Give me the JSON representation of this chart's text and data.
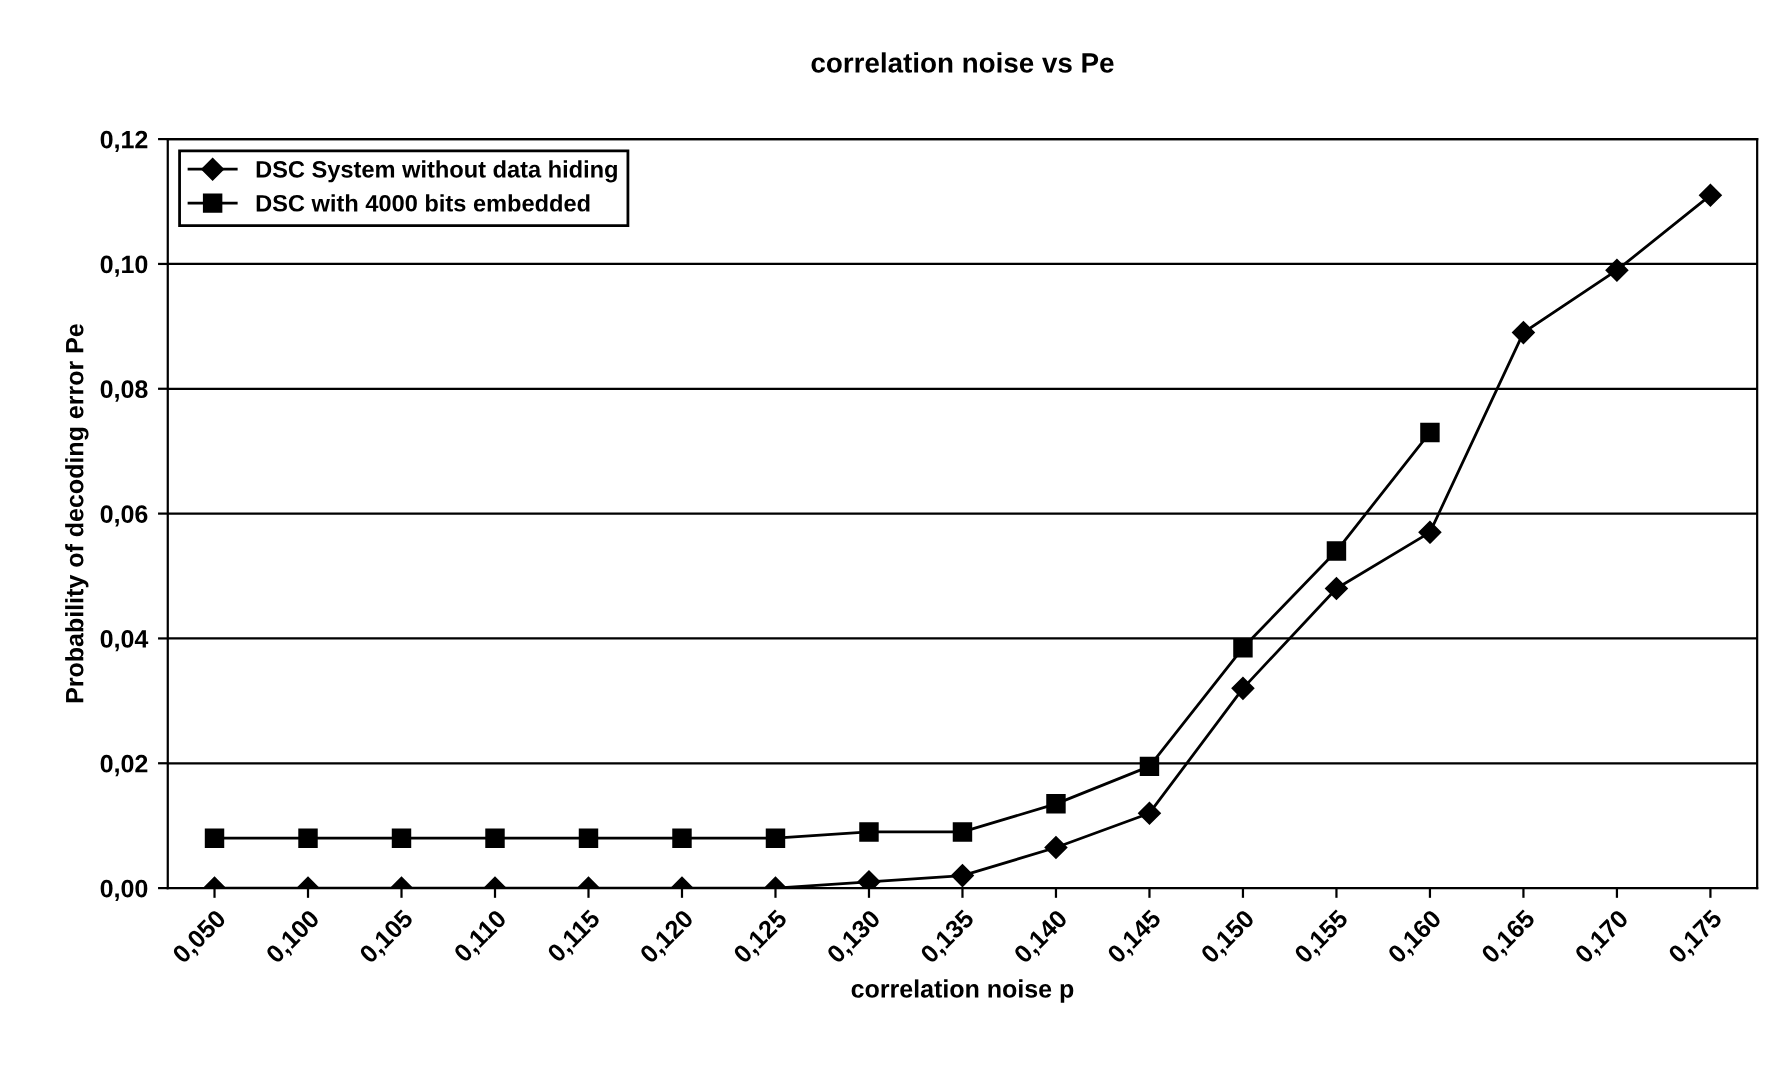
{
  "chart_data": {
    "type": "line",
    "title": "correlation noise vs Pe",
    "xlabel": "correlation noise p",
    "ylabel": "Probability of decoding error Pe",
    "categories": [
      "0,050",
      "0,100",
      "0,105",
      "0,110",
      "0,115",
      "0,120",
      "0,125",
      "0,130",
      "0,135",
      "0,140",
      "0,145",
      "0,150",
      "0,155",
      "0,160",
      "0,165",
      "0,170",
      "0,175"
    ],
    "series": [
      {
        "name": "DSC System without data hiding",
        "color": "#000000",
        "marker": "diamond",
        "values": [
          0,
          0,
          0,
          0,
          0,
          0,
          0,
          0.001,
          0.002,
          0.0065,
          0.012,
          0.032,
          0.048,
          0.057,
          0.089,
          0.099,
          0.111
        ]
      },
      {
        "name": "DSC with 4000 bits embedded",
        "color": "#000000",
        "marker": "square",
        "values": [
          0.008,
          0.008,
          0.008,
          0.008,
          0.008,
          0.008,
          0.008,
          0.009,
          0.009,
          0.0135,
          0.0195,
          0.0385,
          0.054,
          0.073,
          null,
          null,
          null
        ]
      }
    ],
    "ylim": [
      0,
      0.12
    ],
    "yticks": [
      {
        "value": 0,
        "label": "0,00"
      },
      {
        "value": 0.02,
        "label": "0,02"
      },
      {
        "value": 0.04,
        "label": "0,04"
      },
      {
        "value": 0.06,
        "label": "0,06"
      },
      {
        "value": 0.08,
        "label": "0,08"
      },
      {
        "value": 0.1,
        "label": "0,10"
      },
      {
        "value": 0.12,
        "label": "0,12"
      }
    ],
    "grid": "y",
    "legend": "top left",
    "line_style": "solid"
  }
}
